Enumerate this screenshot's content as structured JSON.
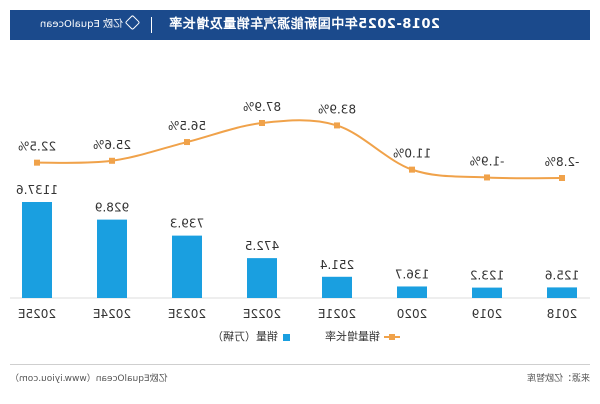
{
  "header": {
    "title": "2018-2025年中国新能源汽车销量及增长率",
    "brand_name": "亿欧",
    "brand_site": "EqualOcean"
  },
  "legend": {
    "growth_label": "销量增长率",
    "sales_label": "销量（万辆）"
  },
  "footer": {
    "source": "来源：亿欧智库",
    "credit": "亿欧EqualOcean（www.iyiou.com）"
  },
  "colors": {
    "header_bg": "#1b4a8c",
    "bar": "#1a9fe0",
    "line": "#f0a24a"
  },
  "chart_data": {
    "type": "bar",
    "categories": [
      "2018",
      "2019",
      "2020",
      "2021E",
      "2022E",
      "2023E",
      "2024E",
      "2025E"
    ],
    "series": [
      {
        "name": "销量（万辆）",
        "type": "bar",
        "values": [
          125.6,
          123.2,
          136.7,
          251.4,
          472.5,
          739.3,
          928.9,
          1137.6
        ],
        "labels": [
          "125.6",
          "123.2",
          "136.7",
          "251.4",
          "472.5",
          "739.3",
          "928.9",
          "1137.6"
        ]
      },
      {
        "name": "销量增长率",
        "type": "line",
        "values": [
          -2.8,
          -1.9,
          11.0,
          83.9,
          87.9,
          56.5,
          25.6,
          22.5
        ],
        "labels": [
          "-2.8%",
          "-1.9%",
          "11.0%",
          "83.9%",
          "87.9%",
          "56.5%",
          "25.6%",
          "22.5%"
        ]
      }
    ],
    "ylim": [
      0,
      1137.6
    ],
    "growth_ylim": [
      -2.8,
      87.9
    ],
    "title": "2018-2025年中国新能源汽车销量及增长率",
    "grid": false,
    "legend_position": "bottom",
    "mirrored": true
  }
}
